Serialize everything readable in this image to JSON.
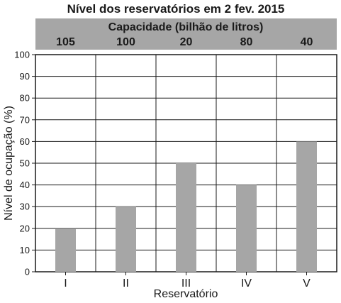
{
  "chart_data": {
    "type": "bar",
    "title": "Nível dos reservatórios em 2 fev. 2015",
    "capacity_header": "Capacidade (bilhão de litros)",
    "capacities": [
      "105",
      "100",
      "20",
      "80",
      "40"
    ],
    "categories": [
      "I",
      "II",
      "III",
      "IV",
      "V"
    ],
    "values": [
      20,
      30,
      50,
      40,
      60
    ],
    "xlabel": "Reservatório",
    "ylabel": "Nível de ocupação (%)",
    "ylim": [
      0,
      100
    ],
    "yticks": [
      "0",
      "10",
      "20",
      "30",
      "40",
      "50",
      "60",
      "70",
      "80",
      "90",
      "100"
    ],
    "grid": true,
    "bar_color": "#a6a6a6",
    "header_band_color": "#a6a6a6"
  }
}
